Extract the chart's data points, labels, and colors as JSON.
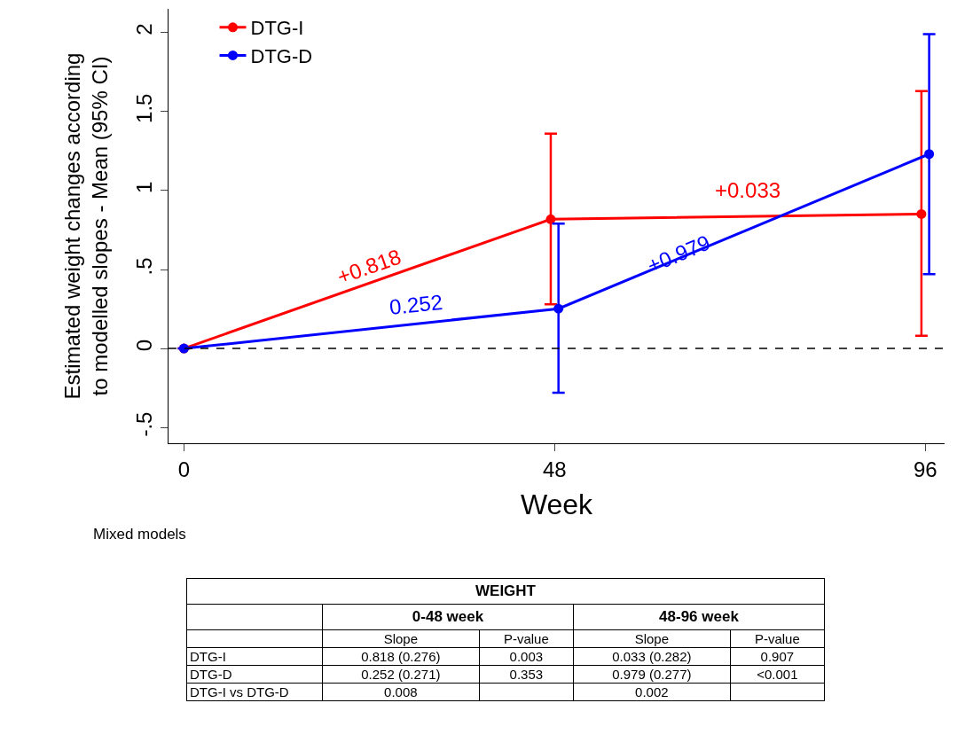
{
  "chart_data": [
    {
      "type": "line",
      "xlabel": "Week",
      "ylabel": "Estimated weight changes according\nto modelled slopes - Mean (95% CI)",
      "xlim": [
        -2,
        98.5
      ],
      "xticks": [
        0,
        48,
        96
      ],
      "ylim": [
        -0.6,
        2.15
      ],
      "yticks": [
        {
          "value": -0.5,
          "label": "-.5"
        },
        0,
        {
          "value": 0.5,
          "label": ".5"
        },
        1,
        1.5,
        2
      ],
      "legend": "top left",
      "marker": "circle",
      "line_style": "solid",
      "grid": false,
      "series": [
        {
          "name": "DTG-I",
          "color": "#ff0000",
          "x": [
            0,
            47.5,
            95.5
          ],
          "values": [
            0,
            0.818,
            0.851
          ],
          "errors": [
            null,
            [
              0.28,
              1.36
            ],
            [
              0.08,
              1.63
            ]
          ]
        },
        {
          "name": "DTG-D",
          "color": "#0000ff",
          "x": [
            0,
            48.5,
            96.5
          ],
          "values": [
            0,
            0.252,
            1.231
          ],
          "errors": [
            null,
            [
              -0.28,
              0.79
            ],
            [
              0.47,
              1.99
            ]
          ]
        }
      ],
      "ref_lines": [
        {
          "axis": "y",
          "value": 0,
          "color": "#000000",
          "line_style": "dashed"
        }
      ],
      "annotations": [
        "+0.818",
        "0.252",
        "+0.979",
        "+0.033",
        "Mixed models"
      ]
    },
    {
      "type": "other",
      "title": "WEIGHT",
      "categories": [
        "0-48 week",
        "48-96 week"
      ],
      "y_categories": [
        null,
        "DTG-I",
        "DTG-D",
        "DTG-I vs DTG-D"
      ],
      "cell_labels": [
        [
          "Slope",
          "P-value",
          "Slope",
          "P-value"
        ],
        [
          "0.818 (0.276)",
          "0.003",
          "0.033 (0.282)",
          "0.907"
        ],
        [
          "0.252 (0.271)",
          "0.353",
          "0.979 (0.277)",
          "<0.001"
        ],
        [
          "0.008",
          null,
          "0.002",
          null
        ]
      ]
    }
  ]
}
